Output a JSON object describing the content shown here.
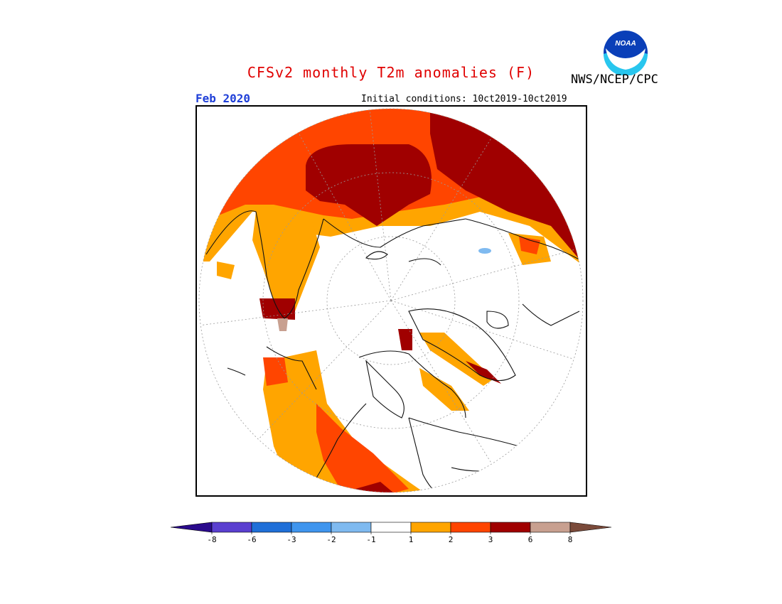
{
  "title": "CFSv2 monthly T2m anomalies (F)",
  "organization": "NWS/NCEP/CPC",
  "logo_text": "NOAA",
  "valid_month": "Feb 2020",
  "initial_conditions": "Initial conditions: 10ct2019-10ct2019",
  "colors": {
    "title": "#e00000",
    "month": "#1f3fd8",
    "frame": "#000000",
    "graticule": "#9a9a9a",
    "coast": "#111111"
  },
  "map": {
    "projection": "north polar stereographic",
    "variable": "T2m anomaly",
    "units": "F"
  },
  "colorbar": {
    "colors": [
      "#2a0a8c",
      "#5a3fd0",
      "#1f6fd8",
      "#3f95ee",
      "#7fbaf0",
      "#ffffff",
      "#ffa500",
      "#ff4500",
      "#a00000",
      "#c8a090",
      "#7a4a3a"
    ],
    "labels": [
      "-8",
      "-6",
      "-3",
      "-2",
      "-1",
      "1",
      "2",
      "3",
      "6",
      "8"
    ]
  }
}
